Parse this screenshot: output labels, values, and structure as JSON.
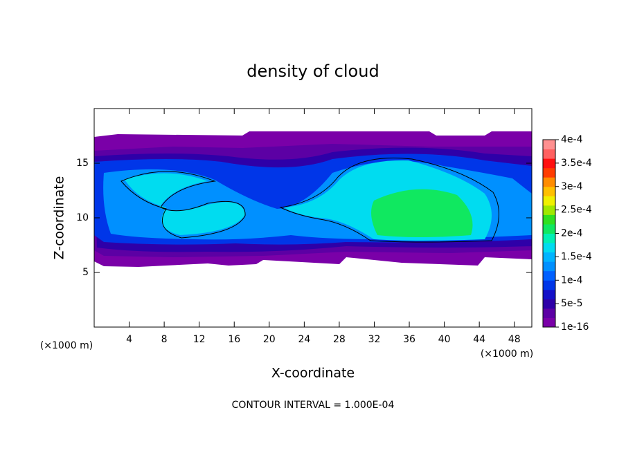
{
  "chart_data": {
    "type": "contour",
    "title": "density of cloud",
    "x_label": "X-coordinate",
    "y_label": "Z-coordinate",
    "x_unit": "(×1000 m)",
    "y_unit": "(×1000 m)",
    "annotation": "CONTOUR INTERVAL = 1.000E-04",
    "xlim": [
      0,
      50
    ],
    "xticks": [
      4,
      8,
      12,
      16,
      20,
      24,
      28,
      32,
      36,
      40,
      44,
      48
    ],
    "ylim": [
      0,
      20
    ],
    "yticks": [
      5,
      10,
      15
    ],
    "colorbar": {
      "lim": [
        1e-16,
        0.0004
      ],
      "ticks": [
        1e-16,
        {
          "value": 5e-05,
          "label": "5e-5"
        },
        {
          "value": 0.0001,
          "label": "1e-4"
        },
        {
          "value": 0.00015,
          "label": "1.5e-4"
        },
        {
          "value": 0.0002,
          "label": "2e-4"
        },
        {
          "value": 0.00025,
          "label": "2.5e-4"
        },
        {
          "value": 0.0003,
          "label": "3e-4"
        },
        {
          "value": 0.00035,
          "label": "3.5e-4"
        },
        {
          "value": 0.0004,
          "label": "4e-4"
        }
      ],
      "colors": [
        "#7a00a8",
        "#5c00a4",
        "#2e00a8",
        "#1410c8",
        "#0036e8",
        "#0060ff",
        "#0090ff",
        "#00b4ff",
        "#00dcf0",
        "#00f0b4",
        "#10e860",
        "#30e020",
        "#a0e800",
        "#f0f000",
        "#ffc000",
        "#ff8c00",
        "#ff3c00",
        "#ff1010",
        "#ff6060",
        "#ff9090"
      ]
    }
  }
}
